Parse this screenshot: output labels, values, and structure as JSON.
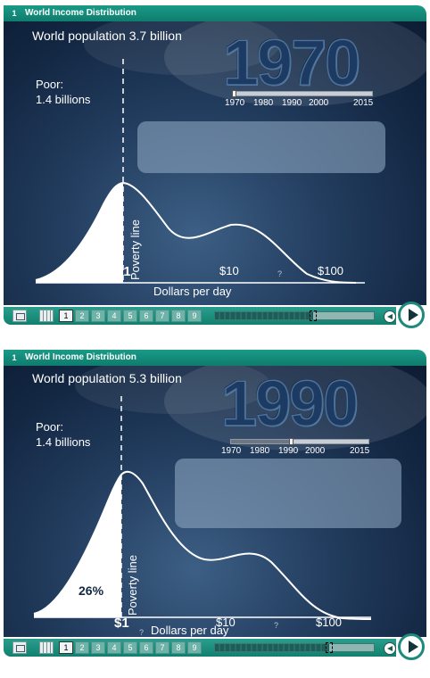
{
  "slides": [
    {
      "number": "1",
      "title": "World Income Distribution",
      "population": "World population 3.7 billion",
      "poor_label": "Poor:",
      "poor_value": "1.4 billions",
      "year": "1970",
      "percentage": "",
      "timeline": {
        "labels": [
          "1970",
          "1980",
          "1990",
          "2000",
          "2015"
        ],
        "progress": 0
      },
      "axis": {
        "ticks": [
          "$1",
          "$10",
          "$100"
        ],
        "unknown_marks": [
          "?"
        ],
        "label": "Dollars per day"
      },
      "poverty_line_label": "Poverty line",
      "pages": [
        "1",
        "2",
        "3",
        "4",
        "5",
        "6",
        "7",
        "8",
        "9"
      ],
      "active_page": 0,
      "scrub_progress": 0.62
    },
    {
      "number": "1",
      "title": "World Income Distribution",
      "population": "World population 5.3 billion",
      "poor_label": "Poor:",
      "poor_value": "1.4 billions",
      "year": "1990",
      "percentage": "26%",
      "timeline": {
        "labels": [
          "1970",
          "1980",
          "1990",
          "2000",
          "2015"
        ],
        "progress": 0.44
      },
      "axis": {
        "ticks": [
          "$1",
          "$10",
          "$100"
        ],
        "unknown_marks": [
          "?",
          "?"
        ],
        "label": "Dollars per day"
      },
      "poverty_line_label": "Poverty line",
      "pages": [
        "1",
        "2",
        "3",
        "4",
        "5",
        "6",
        "7",
        "8",
        "9"
      ],
      "active_page": 0,
      "scrub_progress": 0.72
    }
  ],
  "colors": {
    "titlebar": "#0f7d6d",
    "stage": "#132743",
    "curve": "#ffffff"
  }
}
